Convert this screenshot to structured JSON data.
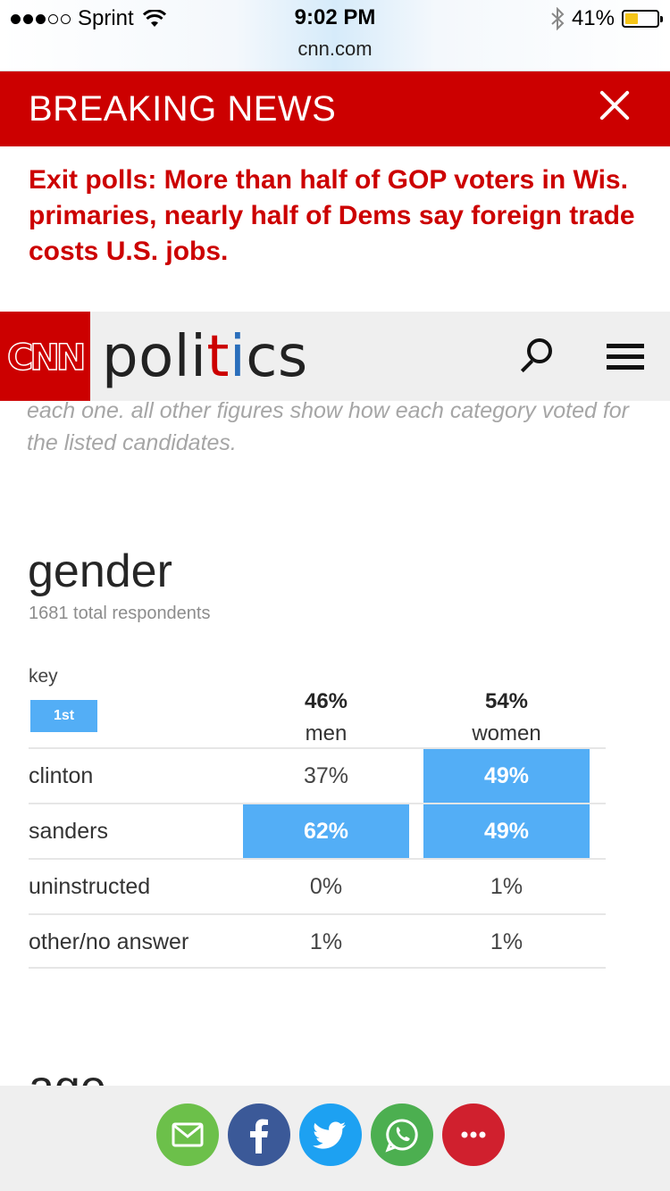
{
  "status_bar": {
    "carrier": "Sprint",
    "time": "9:02 PM",
    "url": "cnn.com",
    "battery": "41%",
    "battery_level": 0.41
  },
  "breaking": {
    "title": "BREAKING NEWS",
    "headline": "Exit polls: More than half of GOP voters in Wis. primaries, nearly half of Dems say foreign trade costs U.S. jobs."
  },
  "header": {
    "logo": "CNN",
    "section_before": "poli",
    "section_t": "t",
    "section_i": "i",
    "section_after": "cs"
  },
  "note": "each one. all other figures show how each category voted for the listed candidates.",
  "gender": {
    "title": "gender",
    "respondents": "1681 total respondents",
    "key_label": "key",
    "key_chip": "1st",
    "columns": [
      {
        "pct": "46%",
        "label": "men"
      },
      {
        "pct": "54%",
        "label": "women"
      }
    ],
    "rows": [
      {
        "candidate": "clinton",
        "men": "37%",
        "women": "49%"
      },
      {
        "candidate": "sanders",
        "men": "62%",
        "women": "49%"
      },
      {
        "candidate": "uninstructed",
        "men": "0%",
        "women": "1%"
      },
      {
        "candidate": "other/no answer",
        "men": "1%",
        "women": "1%"
      }
    ]
  },
  "next_section_title": "age",
  "share": [
    {
      "name": "email",
      "color": "#6cc04a"
    },
    {
      "name": "facebook",
      "color": "#3b5998"
    },
    {
      "name": "twitter",
      "color": "#1da1f2"
    },
    {
      "name": "whatsapp",
      "color": "#4caf50"
    },
    {
      "name": "more",
      "color": "#d0202e"
    }
  ],
  "colors": {
    "brand_red": "#cc0000",
    "winner_blue": "#53aef6"
  }
}
